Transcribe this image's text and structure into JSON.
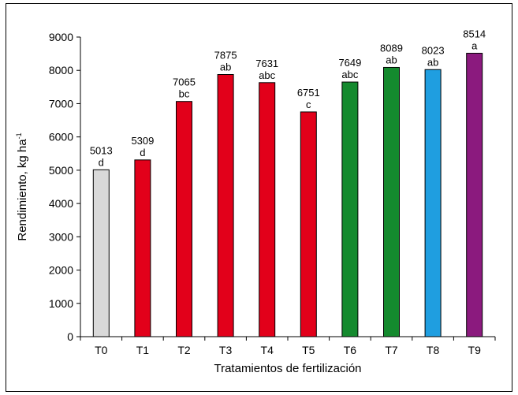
{
  "chart_data": {
    "type": "bar",
    "title": "",
    "xlabel": "Tratamientos de fertilización",
    "ylabel_main": "Rendimiento, kg ha",
    "ylabel_sup": "-1",
    "ylim": [
      0,
      9000
    ],
    "yticks": [
      0,
      1000,
      2000,
      3000,
      4000,
      5000,
      6000,
      7000,
      8000,
      9000
    ],
    "categories": [
      "T0",
      "T1",
      "T2",
      "T3",
      "T4",
      "T5",
      "T6",
      "T7",
      "T8",
      "T9"
    ],
    "values": [
      5013,
      5309,
      7065,
      7875,
      7631,
      6751,
      7649,
      8089,
      8023,
      8514
    ],
    "value_labels": [
      "5013",
      "5309",
      "7065",
      "7875",
      "7631",
      "6751",
      "7649",
      "8089",
      "8023",
      "8514"
    ],
    "letters": [
      "d",
      "d",
      "bc",
      "ab",
      "abc",
      "c",
      "abc",
      "ab",
      "ab",
      "a"
    ],
    "colors": [
      "#d9d9d9",
      "#e2001a",
      "#e2001a",
      "#e2001a",
      "#e2001a",
      "#e2001a",
      "#148a2e",
      "#148a2e",
      "#1f9ee0",
      "#8b1a7e"
    ],
    "grid": false,
    "legend": "none"
  }
}
